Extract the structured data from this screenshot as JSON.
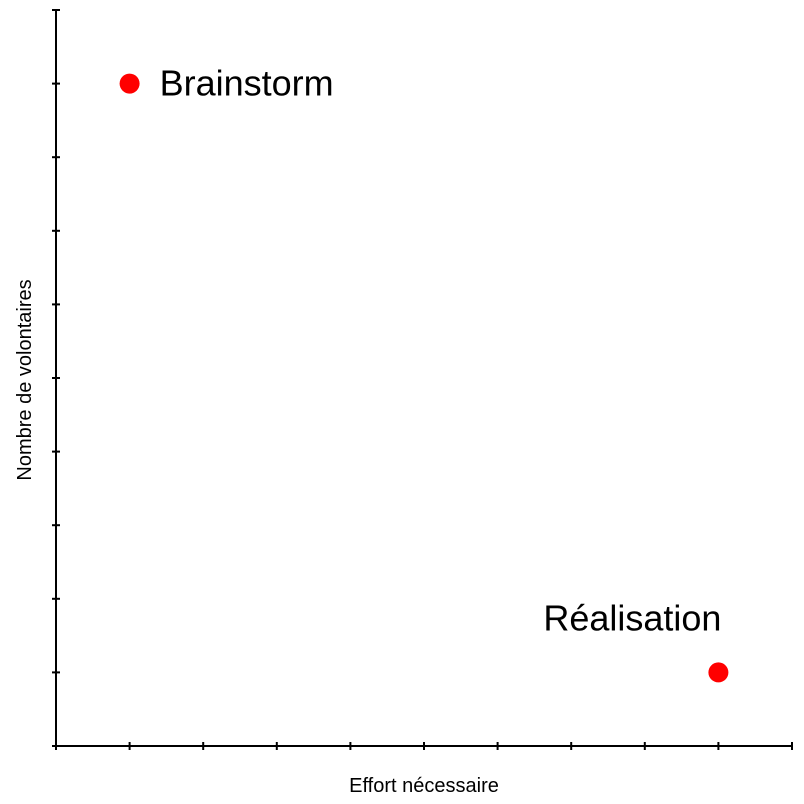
{
  "chart_data": {
    "type": "scatter",
    "title": "",
    "xlabel": "Effort nécessaire",
    "ylabel": "Nombre de volontaires",
    "xlim": [
      0,
      10
    ],
    "ylim": [
      0,
      10
    ],
    "x_ticks": [
      0,
      1,
      2,
      3,
      4,
      5,
      6,
      7,
      8,
      9,
      10
    ],
    "y_ticks": [
      0,
      1,
      2,
      3,
      4,
      5,
      6,
      7,
      8,
      9,
      10
    ],
    "tick_labels_shown": false,
    "grid": false,
    "point_color": "#ff0000",
    "points": [
      {
        "label": "Brainstorm",
        "x": 1,
        "y": 9,
        "label_position": "right"
      },
      {
        "label": "Réalisation",
        "x": 9,
        "y": 1,
        "label_position": "above"
      }
    ]
  }
}
